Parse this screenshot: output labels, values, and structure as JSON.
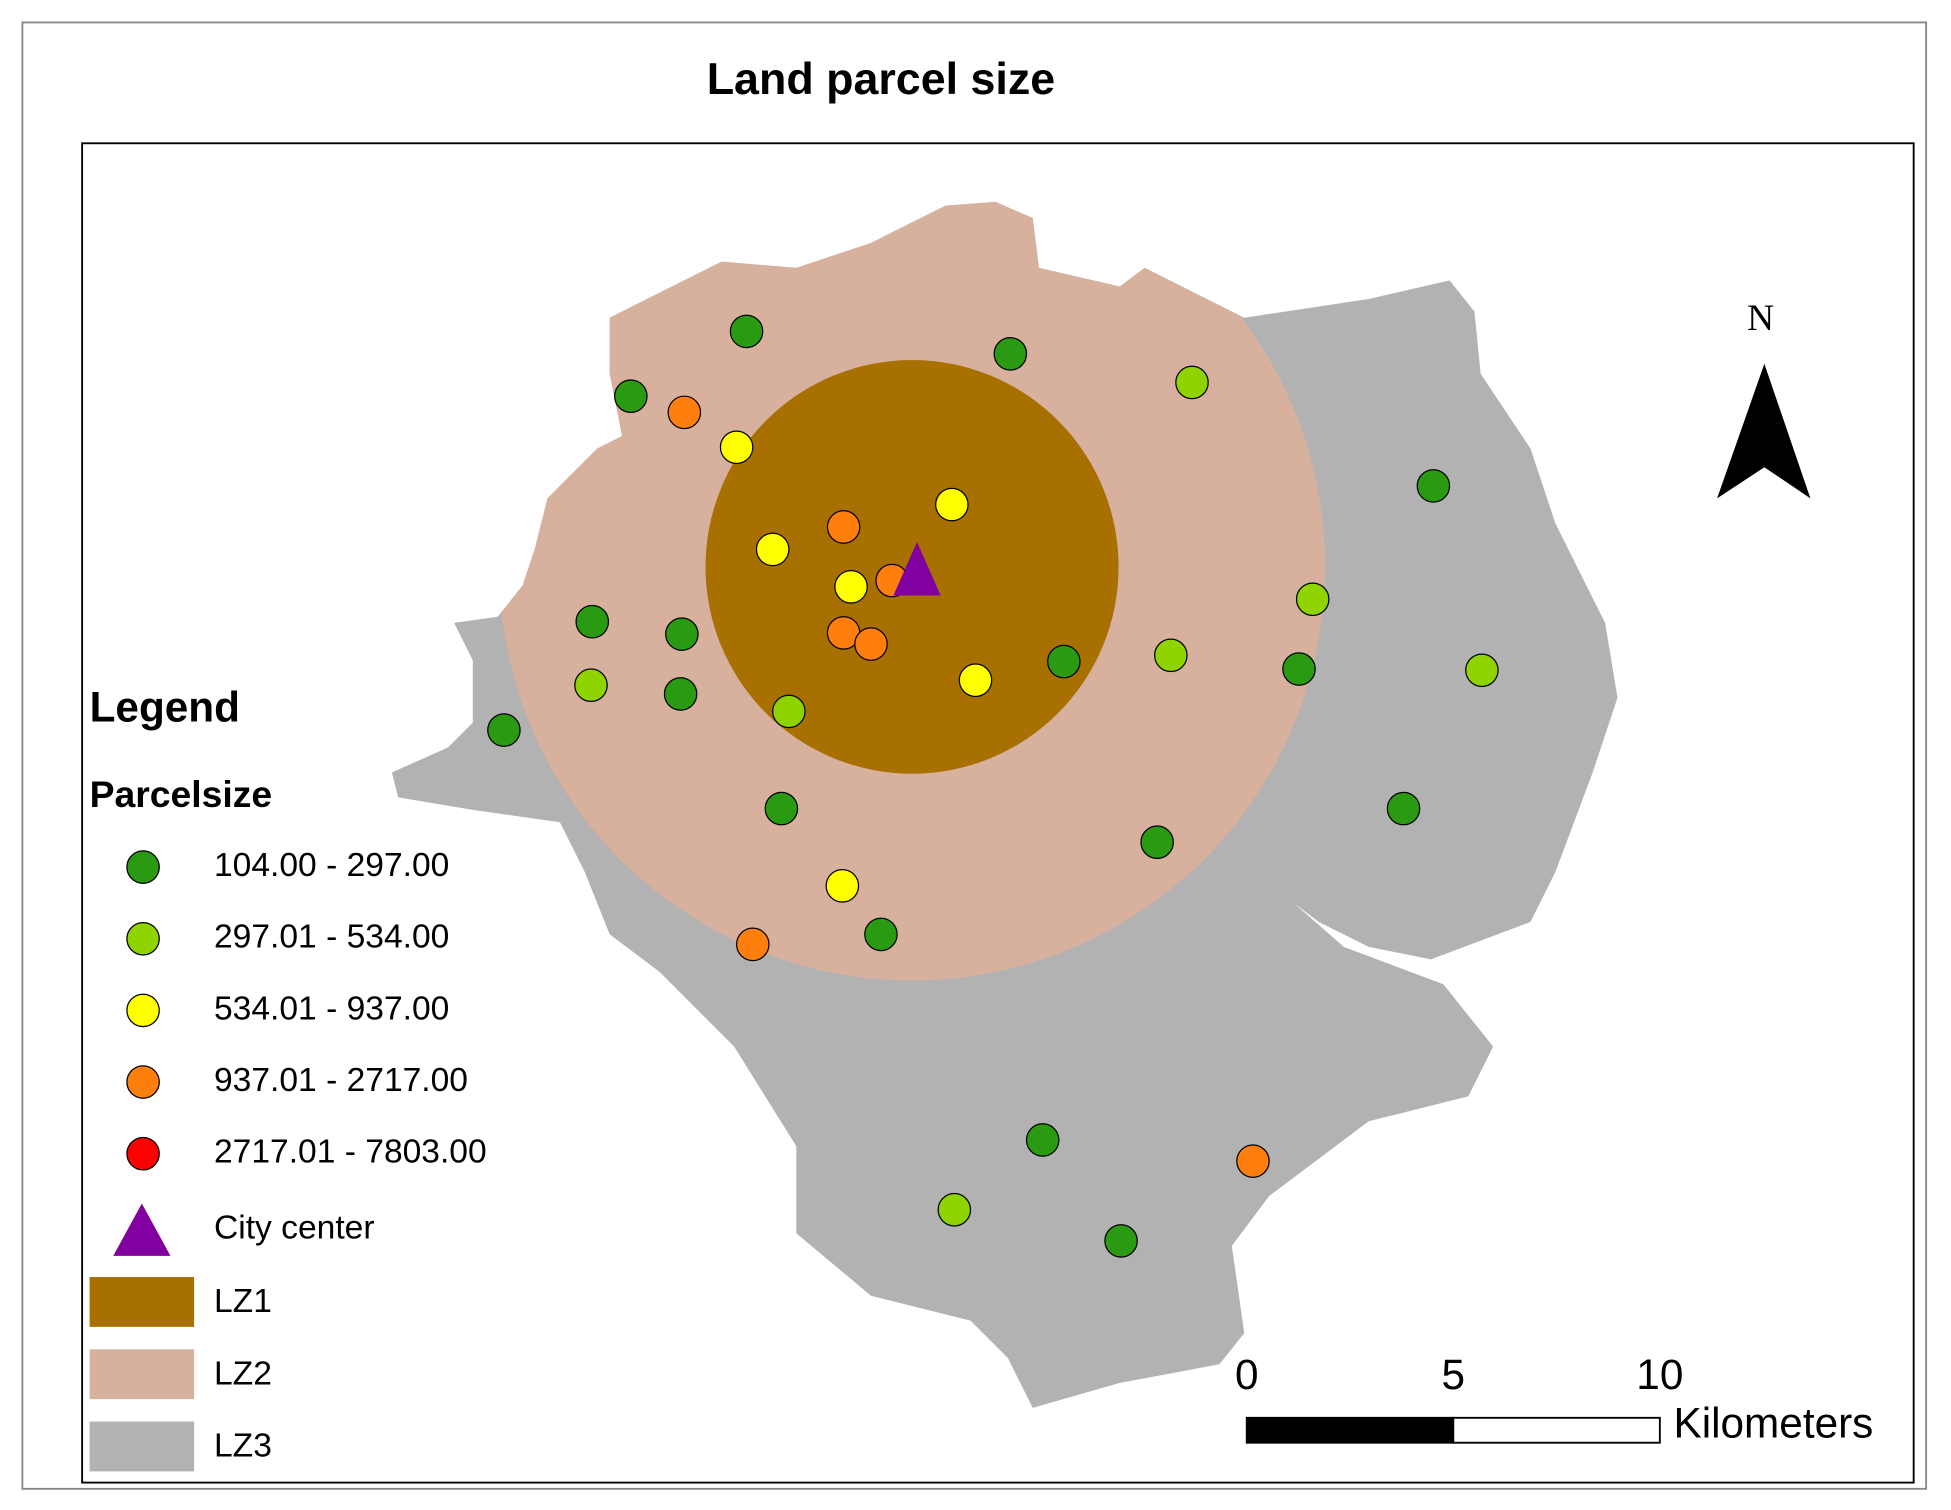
{
  "title": "Land parcel size",
  "legend": {
    "title": "Legend",
    "heading": "Parcelsize",
    "classes": [
      {
        "label": "104.00 - 297.00",
        "color": "#2a9a12"
      },
      {
        "label": "297.01 - 534.00",
        "color": "#8fd400"
      },
      {
        "label": "534.01 - 937.00",
        "color": "#ffff00"
      },
      {
        "label": "937.01 - 2717.00",
        "color": "#ff7f0e"
      },
      {
        "label": "2717.01 - 7803.00",
        "color": "#ff0000"
      }
    ],
    "city_center": {
      "label": "City center",
      "color": "#8000a0"
    },
    "zones": [
      {
        "label": "LZ1",
        "color": "#a87000"
      },
      {
        "label": "LZ2",
        "color": "#d7b09e"
      },
      {
        "label": "LZ3",
        "color": "#b2b2b2"
      }
    ]
  },
  "north": "N",
  "scale_bar": {
    "ticks": [
      0,
      5,
      10
    ],
    "unit": "Kilometers"
  }
}
